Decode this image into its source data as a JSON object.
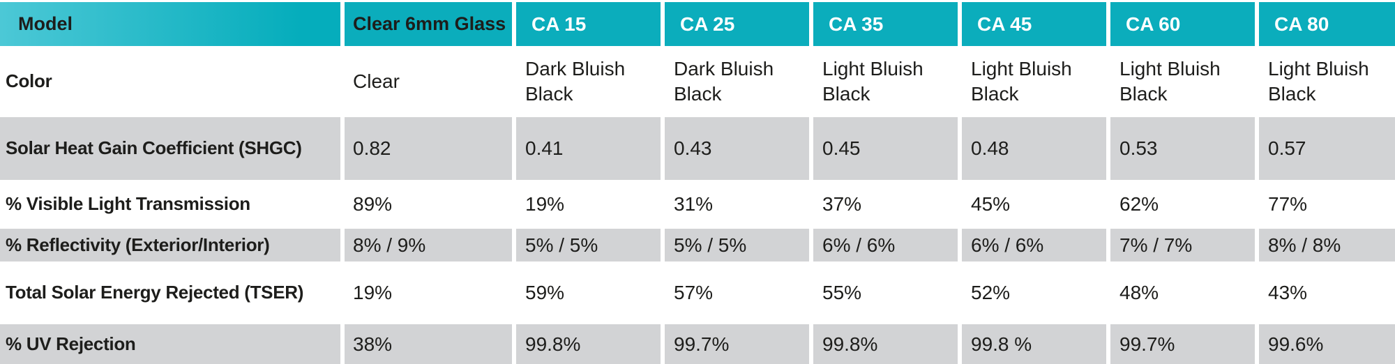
{
  "colors": {
    "header_teal": "#0badbc",
    "header_teal_gradient_left": "#4cc8d6",
    "shaded_row_gray": "#d2d3d5",
    "text": "#1d1d1b",
    "ca_header_text": "#ffffff"
  },
  "table": {
    "header": {
      "model_label": "Model",
      "columns": [
        "Clear 6mm Glass",
        "CA 15",
        "CA 25",
        "CA 35",
        "CA 45",
        "CA 60",
        "CA 80"
      ]
    },
    "rows": [
      {
        "label": "Color",
        "values": [
          "Clear",
          "Dark Bluish Black",
          "Dark Bluish Black",
          "Light Bluish Black",
          "Light Bluish Black",
          "Light Bluish Black",
          "Light Bluish Black"
        ]
      },
      {
        "label": "Solar Heat Gain Coefficient (SHGC)",
        "values": [
          "0.82",
          "0.41",
          "0.43",
          "0.45",
          "0.48",
          "0.53",
          "0.57"
        ]
      },
      {
        "label": "% Visible Light Transmission",
        "values": [
          "89%",
          "19%",
          "31%",
          "37%",
          "45%",
          "62%",
          "77%"
        ]
      },
      {
        "label": "% Reflectivity (Exterior/Interior)",
        "values": [
          "8% / 9%",
          "5% / 5%",
          "5% / 5%",
          "6% / 6%",
          "6% / 6%",
          "7% / 7%",
          "8% / 8%"
        ]
      },
      {
        "label": "Total Solar Energy Rejected (TSER)",
        "values": [
          "19%",
          "59%",
          "57%",
          "55%",
          "52%",
          "48%",
          "43%"
        ]
      },
      {
        "label": "% UV Rejection",
        "values": [
          "38%",
          "99.8%",
          "99.7%",
          "99.8%",
          "99.8 %",
          "99.7%",
          "99.6%"
        ]
      }
    ]
  }
}
